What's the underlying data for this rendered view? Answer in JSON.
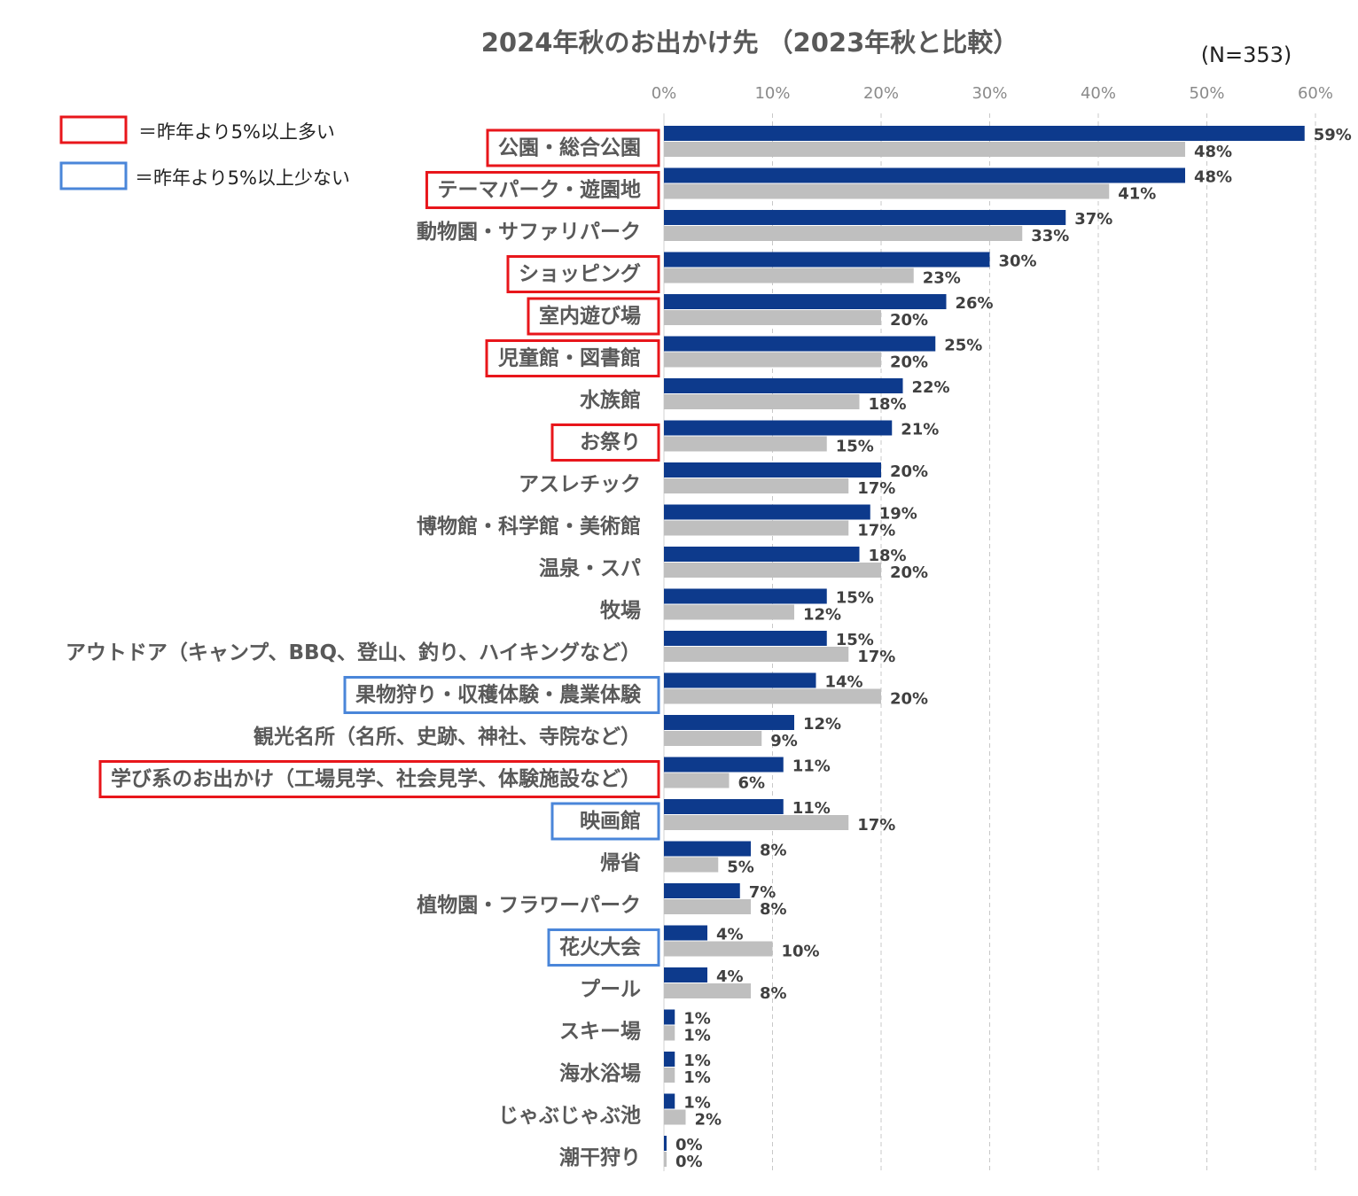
{
  "chart_data": {
    "type": "bar",
    "orientation": "horizontal",
    "title": "2024年秋のお出かけ先 （2023年秋と比較）",
    "sample_note": "(N=353)",
    "xlim": [
      0,
      60
    ],
    "tick_labels": [
      "0%",
      "10%",
      "20%",
      "30%",
      "40%",
      "50%",
      "60%"
    ],
    "grid": true,
    "colors": {
      "series_2024": "#0d3a8c",
      "series_2023": "#bfbfbf",
      "up": "#e8161b",
      "down": "#4a86d9"
    },
    "legend": [
      {
        "style": "up",
        "label": "＝昨年より5%以上多い"
      },
      {
        "style": "down",
        "label": "＝昨年より5%以上少ない"
      }
    ],
    "series": [
      {
        "name": "2024年秋",
        "values": [
          59,
          48,
          37,
          30,
          26,
          25,
          22,
          21,
          20,
          19,
          18,
          15,
          15,
          14,
          12,
          11,
          11,
          8,
          7,
          4,
          4,
          1,
          1,
          1,
          0
        ]
      },
      {
        "name": "2023年秋",
        "values": [
          48,
          41,
          33,
          23,
          20,
          20,
          18,
          15,
          17,
          17,
          20,
          12,
          17,
          20,
          9,
          6,
          17,
          5,
          8,
          10,
          8,
          1,
          1,
          2,
          0
        ]
      }
    ],
    "categories": [
      {
        "label": "公園・総合公園",
        "highlight": "up"
      },
      {
        "label": "テーマパーク・遊園地",
        "highlight": "up"
      },
      {
        "label": "動物園・サファリパーク",
        "highlight": "none"
      },
      {
        "label": "ショッピング",
        "highlight": "up"
      },
      {
        "label": "室内遊び場",
        "highlight": "up"
      },
      {
        "label": "児童館・図書館",
        "highlight": "up"
      },
      {
        "label": "水族館",
        "highlight": "none"
      },
      {
        "label": "お祭り",
        "highlight": "up"
      },
      {
        "label": "アスレチック",
        "highlight": "none"
      },
      {
        "label": "博物館・科学館・美術館",
        "highlight": "none"
      },
      {
        "label": "温泉・スパ",
        "highlight": "none"
      },
      {
        "label": "牧場",
        "highlight": "none"
      },
      {
        "label": "アウトドア（キャンプ、BBQ、登山、釣り、ハイキングなど）",
        "highlight": "none"
      },
      {
        "label": "果物狩り・収穫体験・農業体験",
        "highlight": "down"
      },
      {
        "label": "観光名所（名所、史跡、神社、寺院など）",
        "highlight": "none"
      },
      {
        "label": "学び系のお出かけ（工場見学、社会見学、体験施設など）",
        "highlight": "up"
      },
      {
        "label": "映画館",
        "highlight": "down"
      },
      {
        "label": "帰省",
        "highlight": "none"
      },
      {
        "label": "植物園・フラワーパーク",
        "highlight": "none"
      },
      {
        "label": "花火大会",
        "highlight": "down"
      },
      {
        "label": "プール",
        "highlight": "none"
      },
      {
        "label": "スキー場",
        "highlight": "none"
      },
      {
        "label": "海水浴場",
        "highlight": "none"
      },
      {
        "label": "じゃぶじゃぶ池",
        "highlight": "none"
      },
      {
        "label": "潮干狩り",
        "highlight": "none"
      }
    ]
  }
}
